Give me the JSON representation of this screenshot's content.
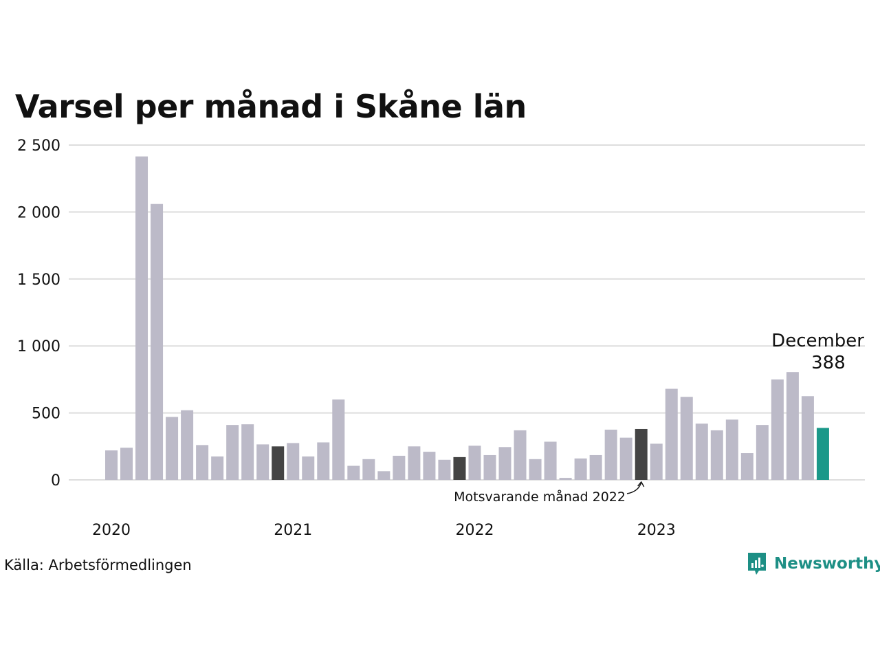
{
  "chart_data": {
    "type": "bar",
    "title": "Varsel per månad i Skåne län",
    "source": "Källa: Arbetsförmedlingen",
    "brand": "Newsworthy",
    "ylim": [
      0,
      2500
    ],
    "yticks": [
      0,
      500,
      1000,
      1500,
      2000,
      2500
    ],
    "ytick_labels": [
      "0",
      "500",
      "1 000",
      "1 500",
      "2 000",
      "2 500"
    ],
    "year_labels": [
      {
        "label": "2020",
        "index": 0
      },
      {
        "label": "2021",
        "index": 12
      },
      {
        "label": "2022",
        "index": 24
      },
      {
        "label": "2023",
        "index": 36
      }
    ],
    "values": [
      220,
      240,
      2415,
      2060,
      470,
      520,
      260,
      175,
      410,
      415,
      265,
      250,
      275,
      175,
      280,
      600,
      105,
      155,
      65,
      180,
      250,
      210,
      150,
      170,
      255,
      185,
      245,
      370,
      155,
      285,
      15,
      160,
      185,
      375,
      315,
      380,
      270,
      680,
      620,
      420,
      370,
      450,
      200,
      410,
      750,
      805,
      625,
      388
    ],
    "highlight_indices": [
      11,
      23,
      35
    ],
    "current_index": 47,
    "colors": {
      "bar": "#bcbac8",
      "highlight": "#444444",
      "current": "#1a9889",
      "grid": "#dddddd"
    },
    "annotations": {
      "current_label": "December",
      "current_value": "388",
      "previous_label": "Motsvarande månad 2022"
    }
  }
}
